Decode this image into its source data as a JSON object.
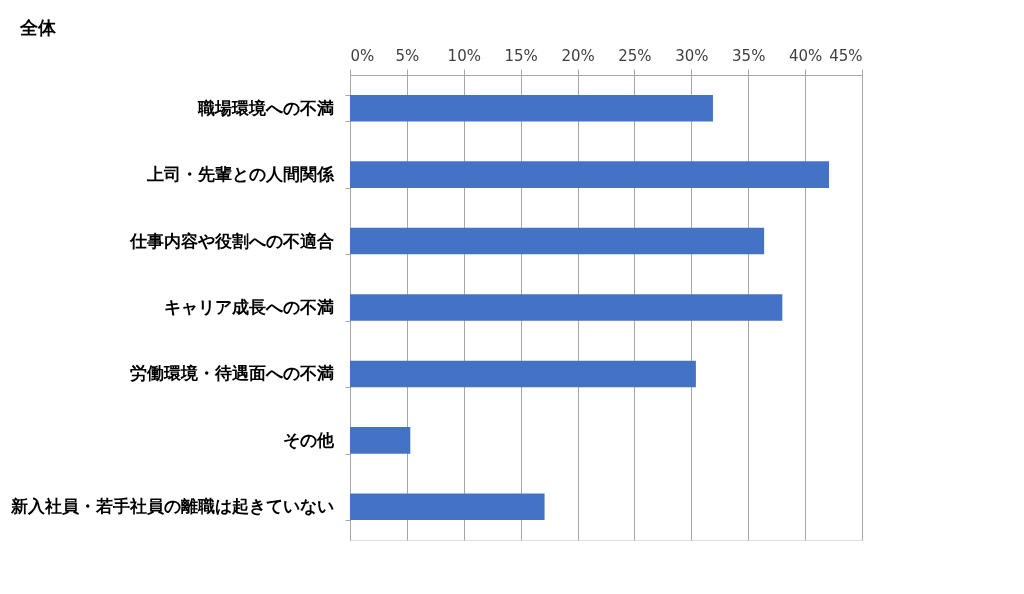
{
  "chart_data": {
    "type": "bar",
    "orientation": "horizontal",
    "title": "全体",
    "categories": [
      "職場環境への不満",
      "上司・先輩との人間関係",
      "仕事内容や役割への不適合",
      "キャリア成長への不満",
      "労働環境・待遇面への不満",
      "その他",
      "新入社員・若手社員の離職は起きていない"
    ],
    "values": [
      31.9,
      42.1,
      36.4,
      38.0,
      30.4,
      5.3,
      17.1
    ],
    "color": "#4472c4",
    "xlim": [
      0,
      45
    ],
    "xticks": [
      {
        "value": 0,
        "label": "0%"
      },
      {
        "value": 5,
        "label": "5%"
      },
      {
        "value": 10,
        "label": "10%"
      },
      {
        "value": 15,
        "label": "15%"
      },
      {
        "value": 20,
        "label": "20%"
      },
      {
        "value": 25,
        "label": "25%"
      },
      {
        "value": 30,
        "label": "30%"
      },
      {
        "value": 35,
        "label": "35%"
      },
      {
        "value": 40,
        "label": "40%"
      },
      {
        "value": 45,
        "label": "45%"
      }
    ],
    "grid": "x"
  }
}
